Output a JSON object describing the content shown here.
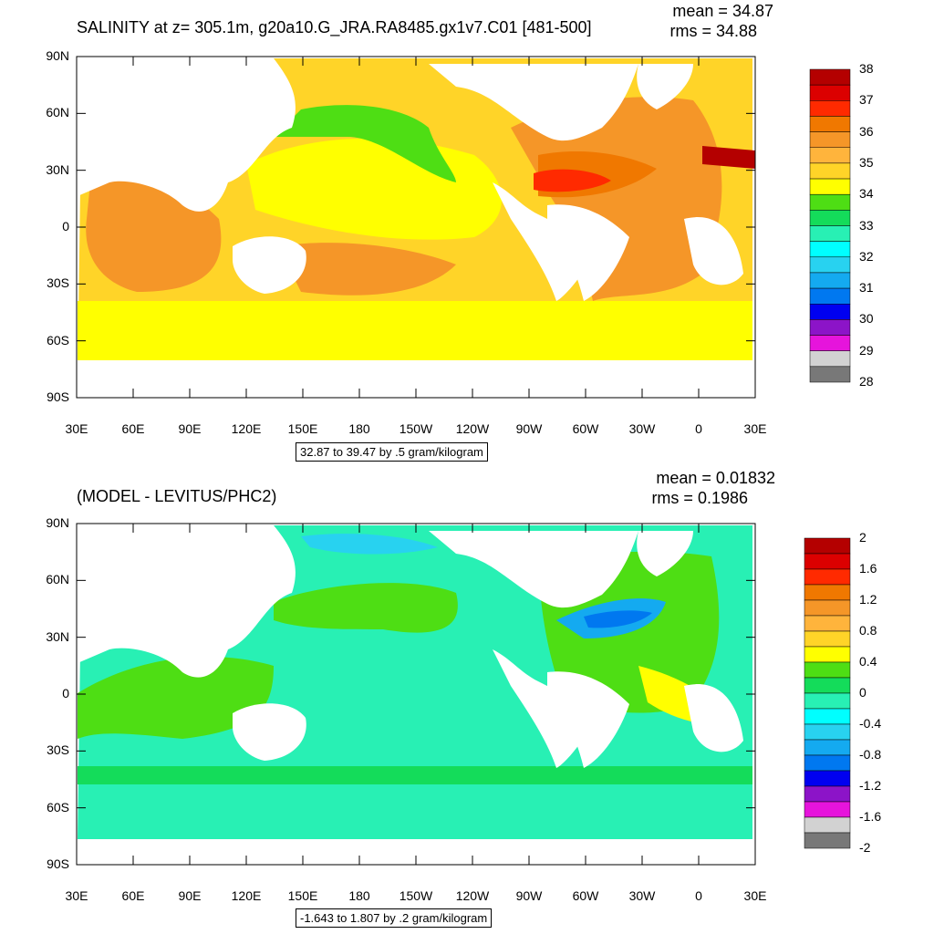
{
  "panels": [
    {
      "title": "SALINITY at z= 305.1m, g20a10.G_JRA.RA8485.gx1v7.C01 [481-500]",
      "mean_text": "mean = 34.87",
      "rms_text": "rms = 34.88",
      "caption": "32.87 to 39.47 by .5 gram/kilogram",
      "colorbar": {
        "labels": [
          "38",
          "37",
          "36",
          "35",
          "34",
          "33",
          "32",
          "31",
          "30",
          "29",
          "28"
        ],
        "colors": [
          "#b40000",
          "#dc0000",
          "#ff2a00",
          "#f07800",
          "#f59628",
          "#ffb43c",
          "#ffd428",
          "#ffff00",
          "#4ede14",
          "#14dc5a",
          "#28f0b4",
          "#00ffff",
          "#28d2f0",
          "#14aaf0",
          "#0078f0",
          "#0000f0",
          "#8c14c8",
          "#e614dc",
          "#d2d2d2",
          "#787878"
        ]
      },
      "map_fill_primary": "#ffd428",
      "map_fill_secondary": "#f59628"
    },
    {
      "title": "(MODEL - LEVITUS/PHC2)",
      "mean_text": "mean = 0.01832",
      "rms_text": "rms = 0.1986",
      "caption": "-1.643 to 1.807 by .2 gram/kilogram",
      "colorbar": {
        "labels": [
          "2",
          "1.6",
          "1.2",
          "0.8",
          "0.4",
          "0",
          "-0.4",
          "-0.8",
          "-1.2",
          "-1.6",
          "-2"
        ],
        "colors": [
          "#b40000",
          "#dc0000",
          "#ff2a00",
          "#f07800",
          "#f59628",
          "#ffb43c",
          "#ffd428",
          "#ffff00",
          "#4ede14",
          "#14dc5a",
          "#28f0b4",
          "#00ffff",
          "#28d2f0",
          "#14aaf0",
          "#0078f0",
          "#0000f0",
          "#8c14c8",
          "#e614dc",
          "#d2d2d2",
          "#787878"
        ]
      },
      "map_fill_primary": "#28f0b4",
      "map_fill_secondary": "#4ede14"
    }
  ],
  "axes": {
    "lat_labels": [
      "90N",
      "60N",
      "30N",
      "0",
      "30S",
      "60S",
      "90S"
    ],
    "lon_labels": [
      "30E",
      "60E",
      "90E",
      "120E",
      "150E",
      "180",
      "150W",
      "120W",
      "90W",
      "60W",
      "30W",
      "0",
      "30E"
    ]
  }
}
